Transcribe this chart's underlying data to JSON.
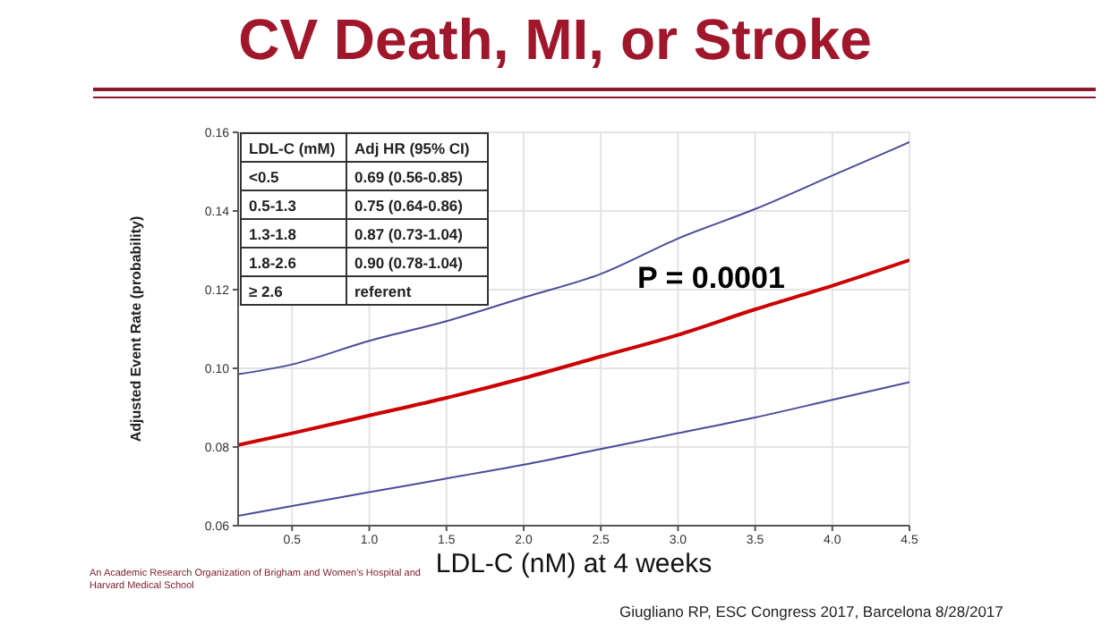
{
  "chart_data": {
    "type": "line",
    "title": "CV Death, MI, or Stroke",
    "xlabel": "LDL-C (nM) at 4 weeks",
    "ylabel": "Adjusted Event Rate (probability)",
    "x": [
      0.15,
      0.5,
      1.0,
      1.5,
      2.0,
      2.5,
      3.0,
      3.5,
      4.0,
      4.5
    ],
    "series": [
      {
        "color": "#4b4b9a",
        "values": [
          0.0985,
          0.101,
          0.107,
          0.112,
          0.118,
          0.124,
          0.133,
          0.1405,
          0.149,
          0.1575
        ]
      },
      {
        "color": "#cc0000",
        "values": [
          0.0805,
          0.0835,
          0.088,
          0.0925,
          0.0975,
          0.103,
          0.1085,
          0.115,
          0.121,
          0.1275
        ]
      },
      {
        "color": "#4b4b9a",
        "values": [
          0.0625,
          0.065,
          0.0685,
          0.072,
          0.0755,
          0.0795,
          0.0835,
          0.0875,
          0.092,
          0.0965
        ]
      }
    ],
    "xlim": [
      0.15,
      4.5
    ],
    "xticks": [
      0.5,
      {
        "value": 1,
        "label": "1.0"
      },
      1.5,
      {
        "value": 2,
        "label": "2.0"
      },
      2.5,
      {
        "value": 3,
        "label": "3.0"
      },
      3.5,
      {
        "value": 4,
        "label": "4.0"
      },
      4.5
    ],
    "ylim": [
      0.06,
      0.16
    ],
    "yticks": [
      0.06,
      0.08,
      {
        "value": 0.1,
        "label": "0.10"
      },
      0.12,
      0.14,
      0.16
    ],
    "grid": true,
    "marker": "none",
    "line_style": "solid",
    "annotations": [
      "LDL-C (mM)",
      "Adj HR (95% CI)",
      "<0.5",
      "0.69 (0.56-0.85)",
      "0.5-1.3",
      "0.75 (0.64-0.86)",
      "1.3-1.8",
      "0.87 (0.73-1.04)",
      "1.8-2.6",
      "0.90 (0.78-1.04)",
      "≥ 2.6",
      "referent",
      "P = 0.0001",
      "An Academic Research Organization of Brigham and Women's Hospital and Harvard Medical School",
      "Giugliano RP, ESC Congress 2017, Barcelona 8/28/2017"
    ]
  }
}
